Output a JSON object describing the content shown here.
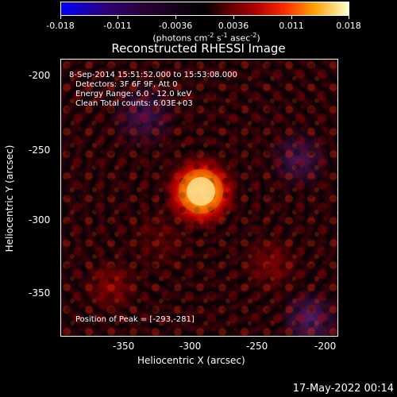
{
  "colorbar": {
    "ticks": [
      "-0.018",
      "-0.011",
      "-0.0036",
      "0.0036",
      "0.011",
      "0.018"
    ],
    "units": {
      "prefix": "(photons cm",
      "exp1": "-2",
      "mid1": " s",
      "exp2": "-1",
      "mid2": " asec",
      "exp3": "-2",
      "suffix": ")"
    }
  },
  "title": "Reconstructed RHESSI Image",
  "info": {
    "line1": "8-Sep-2014 15:51:52.000 to 15:53:08.000",
    "line2": "Detectors: 3F 6F 9F, Att 0",
    "line3": "Energy Range: 6.0 - 12.0 keV",
    "line4": "Clean     Total counts: 6.03E+03"
  },
  "peak": "Position of Peak = [-293,-281]",
  "xaxis": {
    "label": "Heliocentric X (arcsec)",
    "ticks": [
      "-350",
      "-300",
      "-250",
      "-200"
    ]
  },
  "yaxis": {
    "label": "Heliocentric Y (arcsec)",
    "ticks": [
      "-200",
      "-250",
      "-300",
      "-350"
    ]
  },
  "timestamp": "17-May-2022 00:14"
}
